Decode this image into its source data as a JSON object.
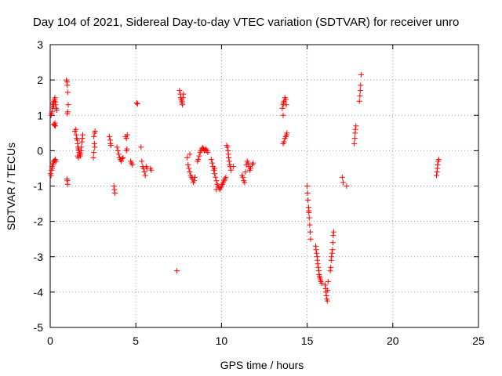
{
  "chart_data": {
    "type": "scatter",
    "title": "Day 104 of 2021, Sidereal Day-to-day VTEC variation (SDTVAR) for receiver unro",
    "xlabel": "GPS time / hours",
    "ylabel": "SDTVAR / TECUs",
    "xlim": [
      0,
      25
    ],
    "ylim": [
      -5,
      3
    ],
    "xticks": [
      0,
      5,
      10,
      15,
      20,
      25
    ],
    "yticks": [
      -5,
      -4,
      -3,
      -2,
      -1,
      0,
      1,
      2,
      3
    ],
    "grid": true,
    "marker": "plus",
    "color": "#ff0000",
    "series": [
      {
        "name": "SDTVAR",
        "points": [
          [
            0.02,
            -0.65
          ],
          [
            0.05,
            -0.7
          ],
          [
            0.08,
            -0.55
          ],
          [
            0.1,
            -0.45
          ],
          [
            0.12,
            -0.5
          ],
          [
            0.15,
            -0.4
          ],
          [
            0.18,
            -0.35
          ],
          [
            0.05,
            1.0
          ],
          [
            0.08,
            1.05
          ],
          [
            0.1,
            1.1
          ],
          [
            0.12,
            1.2
          ],
          [
            0.15,
            1.3
          ],
          [
            0.18,
            1.35
          ],
          [
            0.2,
            1.25
          ],
          [
            0.22,
            1.4
          ],
          [
            0.25,
            1.45
          ],
          [
            0.28,
            1.5
          ],
          [
            0.3,
            1.38
          ],
          [
            0.32,
            1.3
          ],
          [
            0.35,
            1.2
          ],
          [
            0.38,
            1.15
          ],
          [
            0.22,
            0.75
          ],
          [
            0.25,
            0.72
          ],
          [
            0.28,
            0.78
          ],
          [
            0.3,
            0.7
          ],
          [
            0.2,
            -0.3
          ],
          [
            0.25,
            -0.28
          ],
          [
            0.3,
            -0.25
          ],
          [
            0.35,
            -0.3
          ],
          [
            0.95,
            2.0
          ],
          [
            0.98,
            1.95
          ],
          [
            1.0,
            1.85
          ],
          [
            1.02,
            1.65
          ],
          [
            1.05,
            1.3
          ],
          [
            1.0,
            1.05
          ],
          [
            1.02,
            1.1
          ],
          [
            0.98,
            -0.8
          ],
          [
            1.0,
            -0.85
          ],
          [
            1.02,
            -0.95
          ],
          [
            1.45,
            0.55
          ],
          [
            1.5,
            0.6
          ],
          [
            1.52,
            0.45
          ],
          [
            1.55,
            0.35
          ],
          [
            1.58,
            0.3
          ],
          [
            1.6,
            0.2
          ],
          [
            1.62,
            0.1
          ],
          [
            1.65,
            0.05
          ],
          [
            1.68,
            0.0
          ],
          [
            1.7,
            -0.05
          ],
          [
            1.72,
            -0.1
          ],
          [
            1.75,
            -0.15
          ],
          [
            1.78,
            -0.1
          ],
          [
            1.8,
            0.0
          ],
          [
            1.82,
            0.1
          ],
          [
            1.85,
            0.25
          ],
          [
            1.88,
            0.35
          ],
          [
            1.9,
            0.45
          ],
          [
            1.6,
            -0.15
          ],
          [
            1.65,
            -0.2
          ],
          [
            2.55,
            0.4
          ],
          [
            2.6,
            0.5
          ],
          [
            2.62,
            0.55
          ],
          [
            2.58,
            0.2
          ],
          [
            2.6,
            0.1
          ],
          [
            2.55,
            -0.05
          ],
          [
            2.52,
            -0.2
          ],
          [
            3.45,
            0.4
          ],
          [
            3.5,
            0.3
          ],
          [
            3.52,
            0.2
          ],
          [
            3.55,
            0.15
          ],
          [
            3.72,
            -1.0
          ],
          [
            3.75,
            -1.1
          ],
          [
            3.78,
            -1.2
          ],
          [
            3.9,
            0.1
          ],
          [
            3.95,
            0.0
          ],
          [
            4.0,
            -0.1
          ],
          [
            4.05,
            -0.2
          ],
          [
            4.1,
            -0.25
          ],
          [
            4.15,
            -0.3
          ],
          [
            4.2,
            -0.22
          ],
          [
            4.25,
            -0.2
          ],
          [
            4.4,
            0.4
          ],
          [
            4.45,
            0.35
          ],
          [
            4.5,
            0.45
          ],
          [
            4.45,
            0.0
          ],
          [
            4.48,
            0.05
          ],
          [
            4.7,
            -0.3
          ],
          [
            4.75,
            -0.35
          ],
          [
            4.8,
            -0.4
          ],
          [
            5.05,
            1.35
          ],
          [
            5.1,
            1.32
          ],
          [
            5.3,
            0.1
          ],
          [
            5.35,
            -0.3
          ],
          [
            5.4,
            -0.45
          ],
          [
            5.45,
            -0.5
          ],
          [
            5.5,
            -0.6
          ],
          [
            5.55,
            -0.7
          ],
          [
            5.6,
            -0.45
          ],
          [
            5.65,
            -0.5
          ],
          [
            5.85,
            -0.5
          ],
          [
            5.9,
            -0.55
          ],
          [
            7.4,
            -3.4
          ],
          [
            7.55,
            1.7
          ],
          [
            7.6,
            1.6
          ],
          [
            7.62,
            1.5
          ],
          [
            7.65,
            1.45
          ],
          [
            7.68,
            1.4
          ],
          [
            7.7,
            1.35
          ],
          [
            7.72,
            1.3
          ],
          [
            7.75,
            1.5
          ],
          [
            7.78,
            1.6
          ],
          [
            8.0,
            -0.2
          ],
          [
            8.05,
            -0.4
          ],
          [
            8.1,
            -0.5
          ],
          [
            8.15,
            -0.6
          ],
          [
            8.2,
            -0.7
          ],
          [
            8.25,
            -0.75
          ],
          [
            8.3,
            -0.8
          ],
          [
            8.35,
            -0.9
          ],
          [
            8.4,
            -0.85
          ],
          [
            8.45,
            -0.75
          ],
          [
            8.15,
            -0.1
          ],
          [
            8.6,
            -0.3
          ],
          [
            8.65,
            -0.25
          ],
          [
            8.7,
            -0.15
          ],
          [
            8.75,
            -0.05
          ],
          [
            8.8,
            0.0
          ],
          [
            8.85,
            0.05
          ],
          [
            8.9,
            0.08
          ],
          [
            8.95,
            0.05
          ],
          [
            9.0,
            0.0
          ],
          [
            9.05,
            0.02
          ],
          [
            9.1,
            0.05
          ],
          [
            9.15,
            0.0
          ],
          [
            9.2,
            -0.05
          ],
          [
            9.4,
            -0.25
          ],
          [
            9.45,
            -0.35
          ],
          [
            9.5,
            -0.45
          ],
          [
            9.55,
            -0.55
          ],
          [
            9.6,
            -0.65
          ],
          [
            9.65,
            -0.75
          ],
          [
            9.7,
            -0.85
          ],
          [
            9.75,
            -0.95
          ],
          [
            9.8,
            -1.0
          ],
          [
            9.85,
            -1.05
          ],
          [
            9.9,
            -1.1
          ],
          [
            9.95,
            -1.05
          ],
          [
            10.0,
            -1.0
          ],
          [
            10.05,
            -0.95
          ],
          [
            10.1,
            -0.9
          ],
          [
            10.15,
            -0.85
          ],
          [
            10.2,
            -0.8
          ],
          [
            10.25,
            -0.75
          ],
          [
            9.6,
            -0.5
          ],
          [
            9.7,
            -1.1
          ],
          [
            10.3,
            0.15
          ],
          [
            10.35,
            0.1
          ],
          [
            10.38,
            0.0
          ],
          [
            10.4,
            -0.1
          ],
          [
            10.42,
            -0.2
          ],
          [
            10.45,
            -0.3
          ],
          [
            10.48,
            -0.4
          ],
          [
            10.5,
            -0.45
          ],
          [
            10.55,
            -0.55
          ],
          [
            10.7,
            -0.45
          ],
          [
            11.2,
            -0.7
          ],
          [
            11.25,
            -0.75
          ],
          [
            11.3,
            -0.85
          ],
          [
            11.35,
            -0.9
          ],
          [
            11.4,
            -0.6
          ],
          [
            11.45,
            -0.4
          ],
          [
            11.5,
            -0.3
          ],
          [
            11.55,
            -0.35
          ],
          [
            11.6,
            -0.45
          ],
          [
            11.65,
            -0.55
          ],
          [
            11.7,
            -0.5
          ],
          [
            11.8,
            -0.4
          ],
          [
            11.85,
            -0.35
          ],
          [
            13.55,
            1.2
          ],
          [
            13.6,
            1.3
          ],
          [
            13.62,
            1.35
          ],
          [
            13.65,
            1.4
          ],
          [
            13.7,
            1.5
          ],
          [
            13.75,
            1.45
          ],
          [
            13.78,
            1.3
          ],
          [
            13.6,
            1.0
          ],
          [
            13.6,
            0.2
          ],
          [
            13.65,
            0.25
          ],
          [
            13.7,
            0.35
          ],
          [
            13.75,
            0.4
          ],
          [
            13.8,
            0.45
          ],
          [
            13.82,
            0.5
          ],
          [
            15.0,
            -1.0
          ],
          [
            15.02,
            -1.2
          ],
          [
            15.05,
            -1.4
          ],
          [
            15.08,
            -1.6
          ],
          [
            15.1,
            -1.7
          ],
          [
            15.12,
            -1.9
          ],
          [
            15.15,
            -2.1
          ],
          [
            15.18,
            -2.3
          ],
          [
            15.2,
            -2.5
          ],
          [
            15.1,
            -1.75
          ],
          [
            15.5,
            -2.7
          ],
          [
            15.52,
            -2.8
          ],
          [
            15.55,
            -2.9
          ],
          [
            15.58,
            -3.0
          ],
          [
            15.6,
            -3.1
          ],
          [
            15.62,
            -3.2
          ],
          [
            15.65,
            -3.3
          ],
          [
            15.68,
            -3.4
          ],
          [
            15.7,
            -3.5
          ],
          [
            15.72,
            -3.55
          ],
          [
            15.75,
            -3.6
          ],
          [
            15.78,
            -3.65
          ],
          [
            15.8,
            -3.7
          ],
          [
            15.85,
            -3.75
          ],
          [
            16.05,
            -3.8
          ],
          [
            16.08,
            -3.9
          ],
          [
            16.1,
            -4.0
          ],
          [
            16.12,
            -4.1
          ],
          [
            16.15,
            -4.2
          ],
          [
            16.18,
            -4.25
          ],
          [
            16.2,
            -3.95
          ],
          [
            16.22,
            -3.7
          ],
          [
            16.35,
            -3.4
          ],
          [
            16.38,
            -3.3
          ],
          [
            16.4,
            -3.1
          ],
          [
            16.42,
            -3.0
          ],
          [
            16.45,
            -2.9
          ],
          [
            16.48,
            -2.8
          ],
          [
            16.5,
            -2.6
          ],
          [
            16.52,
            -2.4
          ],
          [
            16.55,
            -2.3
          ],
          [
            17.05,
            -0.75
          ],
          [
            17.1,
            -0.9
          ],
          [
            17.3,
            -1.0
          ],
          [
            17.75,
            0.2
          ],
          [
            17.78,
            0.35
          ],
          [
            17.8,
            0.5
          ],
          [
            17.82,
            0.6
          ],
          [
            17.85,
            0.7
          ],
          [
            18.05,
            1.4
          ],
          [
            18.08,
            1.55
          ],
          [
            18.1,
            1.7
          ],
          [
            18.12,
            1.85
          ],
          [
            18.15,
            2.15
          ],
          [
            22.55,
            -0.7
          ],
          [
            22.58,
            -0.6
          ],
          [
            22.6,
            -0.5
          ],
          [
            22.62,
            -0.4
          ],
          [
            22.65,
            -0.3
          ],
          [
            22.68,
            -0.25
          ]
        ]
      }
    ]
  }
}
